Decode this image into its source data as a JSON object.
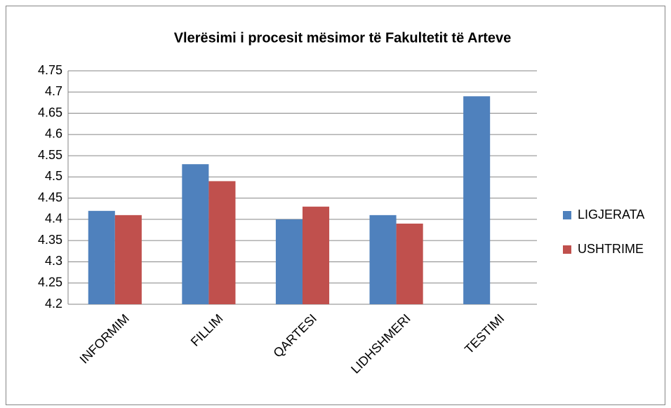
{
  "chart_data": {
    "type": "bar",
    "title": "Vlerësimi i procesit mësimor të Fakultetit të Arteve",
    "categories": [
      "INFORMIM",
      "FILLIM",
      "QARTESI",
      "LIDHSHMERI",
      "TESTIMI"
    ],
    "series": [
      {
        "name": "LIGJERATA",
        "color": "#4f81bd",
        "values": [
          4.42,
          4.53,
          4.4,
          4.41,
          4.69
        ]
      },
      {
        "name": "USHTRIME",
        "color": "#c0504d",
        "values": [
          4.41,
          4.49,
          4.43,
          4.39,
          null
        ]
      }
    ],
    "ylim": [
      4.2,
      4.75
    ],
    "yticks": [
      4.2,
      4.25,
      4.3,
      4.35,
      4.4,
      4.45,
      4.5,
      4.55,
      4.6,
      4.65,
      4.7,
      4.75
    ],
    "grid": true,
    "legend": "right"
  }
}
